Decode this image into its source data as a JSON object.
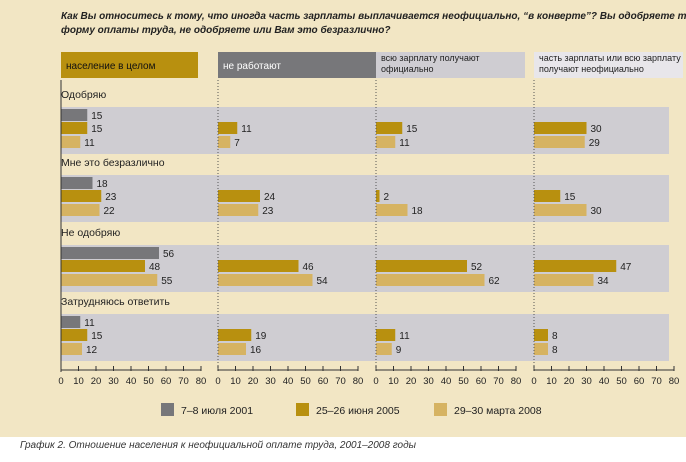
{
  "title": "Как Вы относитесь к тому, что иногда часть зарплаты выплачивается неофициально, “в конверте”? Вы одобряете такую форму оплаты труда, не одобряете или Вам это безразлично?",
  "title_lines": [
    "Как Вы относитесь к тому, что иногда часть зарплаты выплачивается неофициально, “в конверте”? Вы одобряете такую",
    "форму оплаты труда, не одобряете или Вам это безразлично?"
  ],
  "caption": "График 2. Отношение населения к неофициальной оплате труда, 2001–2008 годы",
  "colors": {
    "background": "#f2e6c4",
    "row_band": "#cfcdd2",
    "series_2001": "#77777a",
    "series_2005": "#b8900f",
    "series_2008": "#d6b362",
    "header_1": "#b8900f",
    "header_2": "#77777a",
    "header_3": "#cfcdd2",
    "header_4": "#e8e6ea"
  },
  "chart_data": {
    "type": "bar",
    "orientation": "horizontal",
    "xlim": [
      0,
      80
    ],
    "xticks": [
      "0",
      "10",
      "20",
      "30",
      "40",
      "50",
      "60",
      "70",
      "80"
    ],
    "panels": [
      {
        "name": "население в целом",
        "name_lines": [
          "население в целом"
        ]
      },
      {
        "name": "не работают",
        "name_lines": [
          "не работают"
        ]
      },
      {
        "name": "всю зарплату получают официально",
        "name_lines": [
          "всю зарплату получают",
          "официально"
        ]
      },
      {
        "name": "часть зарплаты или всю зарплату получают неофициально",
        "name_lines": [
          "часть зарплаты или всю зарплату",
          "получают неофициально"
        ]
      }
    ],
    "categories": [
      "Одобряю",
      "Мне это безразлично",
      "Не одобряю",
      "Затрудняюсь ответить"
    ],
    "series": [
      {
        "name": "7–8 июля 2001",
        "values": [
          [
            15,
            null,
            null,
            null
          ],
          [
            18,
            null,
            null,
            null
          ],
          [
            56,
            null,
            null,
            null
          ],
          [
            11,
            null,
            null,
            null
          ]
        ]
      },
      {
        "name": "25–26 июня 2005",
        "values": [
          [
            15,
            11,
            15,
            30
          ],
          [
            23,
            24,
            2,
            15
          ],
          [
            48,
            46,
            52,
            47
          ],
          [
            15,
            19,
            11,
            8
          ]
        ]
      },
      {
        "name": "29–30 марта 2008",
        "values": [
          [
            11,
            7,
            11,
            29
          ],
          [
            22,
            23,
            18,
            30
          ],
          [
            55,
            54,
            62,
            34
          ],
          [
            12,
            16,
            9,
            8
          ]
        ]
      }
    ],
    "legend_position": "bottom"
  }
}
